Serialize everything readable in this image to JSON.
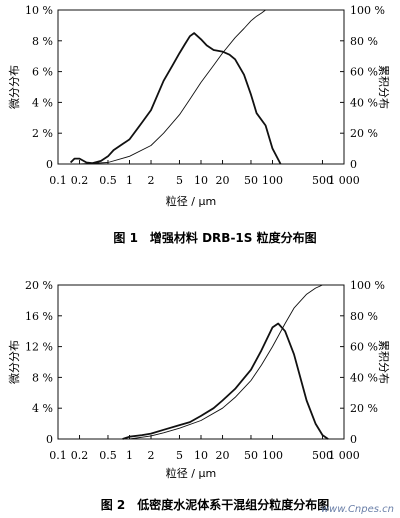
{
  "chart_data": [
    {
      "type": "line",
      "xscale": "log",
      "xlim": [
        0.1,
        1000
      ],
      "x_ticks": [
        "0.1",
        "0.2",
        "0.5",
        "1",
        "2",
        "5",
        "10",
        "20",
        "50",
        "100",
        "500",
        "1 000"
      ],
      "xlabel": "粒径 / μm",
      "left_axis": {
        "label": "微分分布",
        "ylim": [
          0,
          10
        ],
        "ticks": [
          "0",
          "2 %",
          "4 %",
          "6 %",
          "8 %",
          "10 %"
        ]
      },
      "right_axis": {
        "label": "累积分布",
        "ylim": [
          0,
          100
        ],
        "ticks": [
          "0",
          "20 %",
          "40 %",
          "60 %",
          "80 %",
          "100 %"
        ]
      },
      "caption": "图 1　增强材料 DRB-1S 粒度分布图",
      "series": [
        {
          "axis": "left",
          "style": "thick",
          "x": [
            0.15,
            0.17,
            0.2,
            0.25,
            0.3,
            0.4,
            0.5,
            0.6,
            0.8,
            1,
            1.5,
            2,
            3,
            4,
            5,
            6,
            7,
            8,
            10,
            12,
            15,
            20,
            25,
            30,
            40,
            50,
            60,
            80,
            100,
            130
          ],
          "y": [
            0.1,
            0.35,
            0.35,
            0.1,
            0.05,
            0.2,
            0.5,
            0.9,
            1.3,
            1.6,
            2.7,
            3.5,
            5.4,
            6.4,
            7.2,
            7.8,
            8.3,
            8.5,
            8.1,
            7.7,
            7.4,
            7.3,
            7.1,
            6.8,
            5.8,
            4.5,
            3.3,
            2.5,
            1.0,
            0.0
          ]
        },
        {
          "axis": "right",
          "style": "thin",
          "x": [
            0.2,
            0.5,
            1,
            2,
            3,
            5,
            7,
            10,
            15,
            20,
            30,
            40,
            50,
            60,
            70,
            80
          ],
          "y": [
            0,
            1,
            5,
            12,
            20,
            32,
            42,
            53,
            64,
            72,
            82,
            88,
            93,
            96,
            98,
            100
          ]
        }
      ]
    },
    {
      "type": "line",
      "xscale": "log",
      "xlim": [
        0.1,
        1000
      ],
      "x_ticks": [
        "0.1",
        "0.2",
        "0.5",
        "1",
        "2",
        "5",
        "10",
        "20",
        "50",
        "100",
        "500",
        "1 000"
      ],
      "xlabel": "粒径 / μm",
      "left_axis": {
        "label": "微分分布",
        "ylim": [
          0,
          20
        ],
        "ticks": [
          "0",
          "4 %",
          "8 %",
          "12 %",
          "16 %",
          "20 %"
        ]
      },
      "right_axis": {
        "label": "累积分布",
        "ylim": [
          0,
          100
        ],
        "ticks": [
          "0",
          "20 %",
          "40 %",
          "60 %",
          "80 %",
          "100 %"
        ]
      },
      "caption": "图 2　低密度水泥体系干混组分粒度分布图",
      "series": [
        {
          "axis": "left",
          "style": "thick",
          "x": [
            0.8,
            1,
            1.5,
            2,
            3,
            5,
            7,
            10,
            15,
            20,
            30,
            50,
            70,
            100,
            120,
            150,
            200,
            300,
            400,
            500,
            600
          ],
          "y": [
            0,
            0.3,
            0.5,
            0.7,
            1.2,
            1.8,
            2.2,
            3.0,
            4.0,
            5.0,
            6.5,
            9.0,
            11.5,
            14.5,
            15.0,
            14.0,
            11.0,
            5.0,
            2.0,
            0.5,
            0.0
          ]
        },
        {
          "axis": "right",
          "style": "thin",
          "x": [
            1,
            2,
            3,
            5,
            10,
            20,
            30,
            50,
            70,
            100,
            150,
            200,
            300,
            400,
            500,
            700
          ],
          "y": [
            0,
            2,
            4,
            7,
            12,
            20,
            27,
            38,
            48,
            60,
            75,
            85,
            94,
            98,
            100,
            100
          ]
        }
      ]
    }
  ],
  "watermark": "www.Cnpes.cn"
}
